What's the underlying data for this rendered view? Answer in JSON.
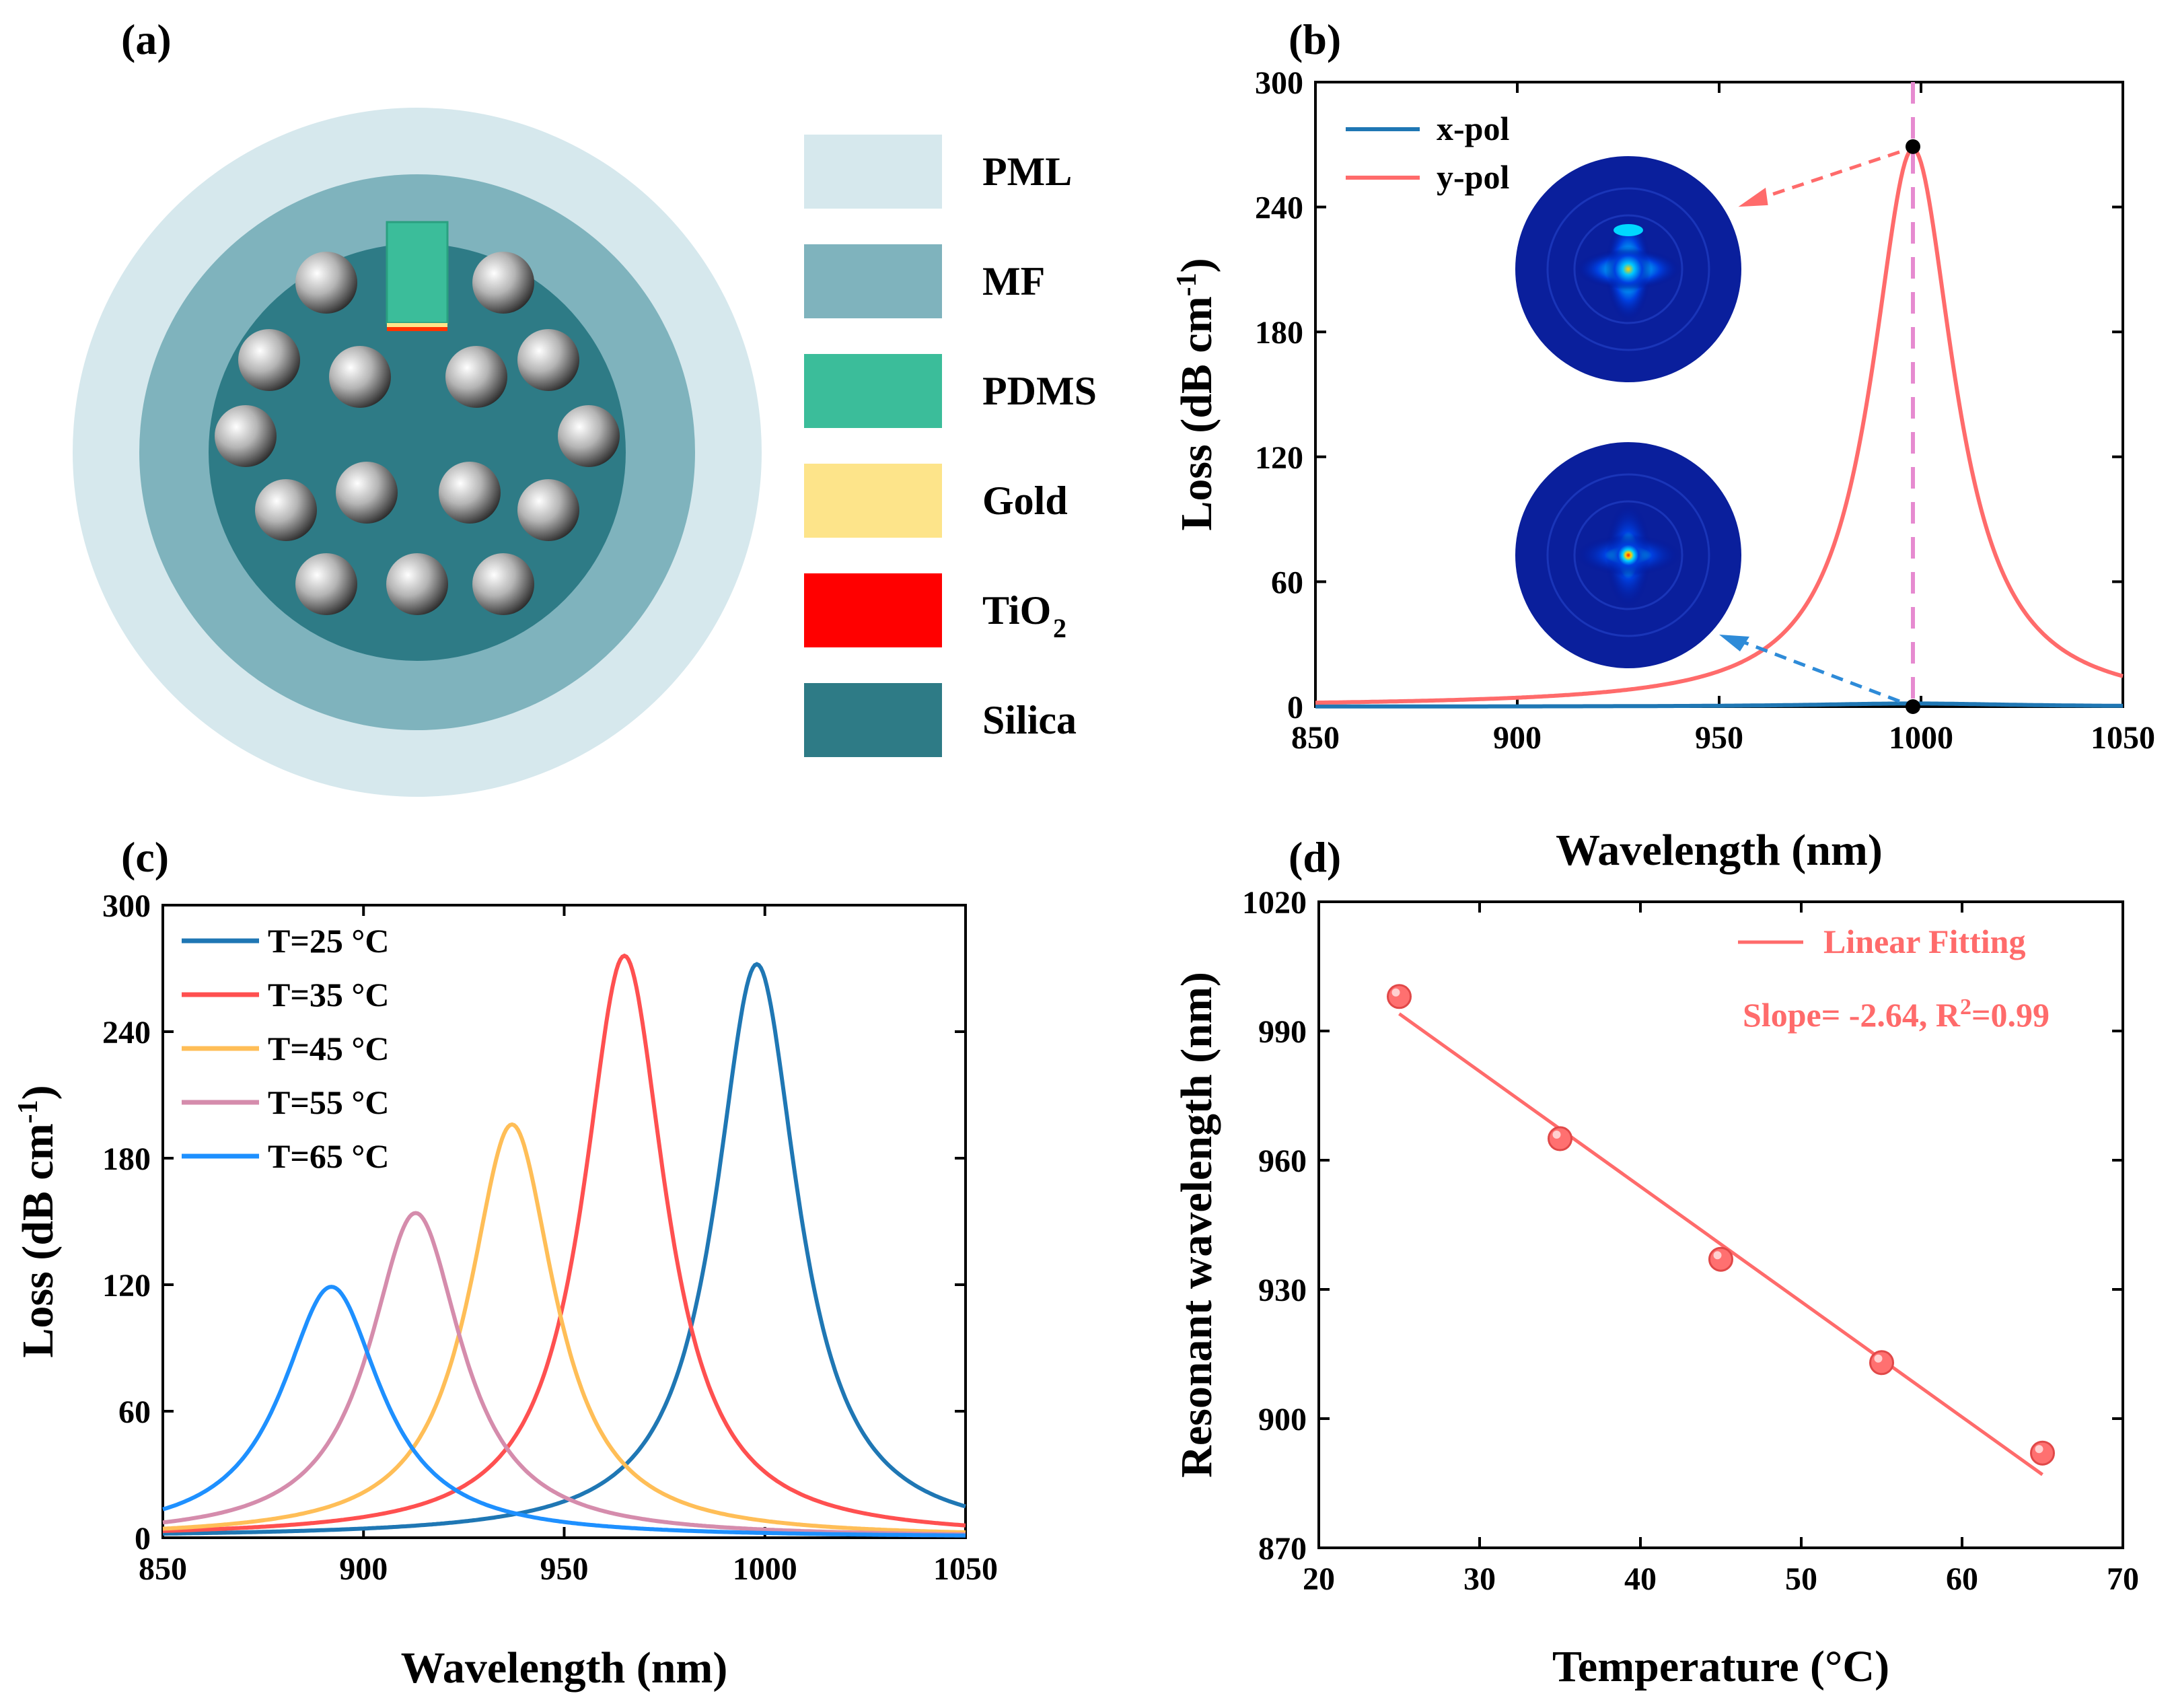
{
  "figure_title": "Four-panel figure: PCF SPR temperature sensor",
  "colors": {
    "pml": "#d6e8ed",
    "mf": "#7fb3bd",
    "pdms": "#3bbd9a",
    "gold": "#fde48a",
    "tio2": "#ff0000",
    "silica": "#2e7b86",
    "blue_dark": "#1f77b4",
    "blue": "#1e90ff",
    "red": "#ff5a5a",
    "orange": "#ffbe57",
    "mauve": "#d58cac",
    "pink_dashed": "#e68ad0"
  },
  "panel_a": {
    "label": "(a)",
    "legend": [
      {
        "name": "PML",
        "color": "#d6e8ed"
      },
      {
        "name": "MF",
        "color": "#7fb3bd"
      },
      {
        "name": "PDMS",
        "color": "#3bbd9a"
      },
      {
        "name": "Gold",
        "color": "#fde48a"
      },
      {
        "name": "TiO",
        "sub": "2",
        "color": "#ff0000"
      },
      {
        "name": "Silica",
        "color": "#2e7b86"
      }
    ]
  },
  "chart_data": [
    {
      "id": "b",
      "label": "(b)",
      "type": "line",
      "xlabel": "Wavelength (nm)",
      "ylabel_main": "Loss (dB cm",
      "ylabel_sup": "-1",
      "ylabel_end": ")",
      "xlim": [
        850,
        1050
      ],
      "ylim": [
        0,
        300
      ],
      "xticks": [
        850,
        900,
        950,
        1000,
        1050
      ],
      "yticks": [
        0,
        60,
        120,
        180,
        240,
        300
      ],
      "marker_x": 998,
      "series": [
        {
          "name": "x-pol",
          "color": "#1f77b4",
          "center": 998,
          "peak": 1.5,
          "gamma": 30,
          "base": 0
        },
        {
          "name": "y-pol",
          "color": "#ff6b6b",
          "center": 998,
          "peak": 268,
          "gamma": 12.5,
          "base": 0
        }
      ],
      "annotations": [
        {
          "point": [
            998,
            269
          ],
          "target": "top-inset"
        },
        {
          "point": [
            998,
            0
          ],
          "target": "bottom-inset"
        }
      ]
    },
    {
      "id": "c",
      "label": "(c)",
      "type": "line",
      "xlabel": "Wavelength (nm)",
      "ylabel_main": "Loss (dB cm",
      "ylabel_sup": "-1",
      "ylabel_end": ")",
      "xlim": [
        850,
        1050
      ],
      "ylim": [
        0,
        300
      ],
      "xticks": [
        850,
        900,
        950,
        1000,
        1050
      ],
      "yticks": [
        0,
        60,
        120,
        180,
        240,
        300
      ],
      "series": [
        {
          "name": "T=25 °C",
          "color": "#1f77b4",
          "center": 998,
          "peak": 272,
          "gamma": 12.5
        },
        {
          "name": "T=35 °C",
          "color": "#ff5050",
          "center": 965,
          "peak": 276,
          "gamma": 12.5
        },
        {
          "name": "T=45 °C",
          "color": "#ffbe57",
          "center": 937,
          "peak": 196,
          "gamma": 13
        },
        {
          "name": "T=55 °C",
          "color": "#d58cac",
          "center": 913,
          "peak": 154,
          "gamma": 14
        },
        {
          "name": "T=65 °C",
          "color": "#1e90ff",
          "center": 892,
          "peak": 119,
          "gamma": 15
        }
      ]
    },
    {
      "id": "d",
      "label": "(d)",
      "type": "scatter",
      "xlabel": "Temperature (°C)",
      "ylabel": "Resonant wavelength (nm)",
      "xlim": [
        20,
        70
      ],
      "ylim": [
        870,
        1020
      ],
      "xticks": [
        20,
        30,
        40,
        50,
        60,
        70
      ],
      "yticks": [
        870,
        900,
        930,
        960,
        990,
        1020
      ],
      "points": [
        {
          "x": 25,
          "y": 998
        },
        {
          "x": 35,
          "y": 965
        },
        {
          "x": 45,
          "y": 937
        },
        {
          "x": 55,
          "y": 913
        },
        {
          "x": 65,
          "y": 892
        }
      ],
      "fit": {
        "x": [
          25,
          65
        ],
        "y": [
          994,
          887
        ]
      },
      "legend_label": "Linear Fitting",
      "slope_text": "Slope= -2.64, R",
      "slope_sup": "2",
      "slope_end": "=0.99"
    }
  ]
}
